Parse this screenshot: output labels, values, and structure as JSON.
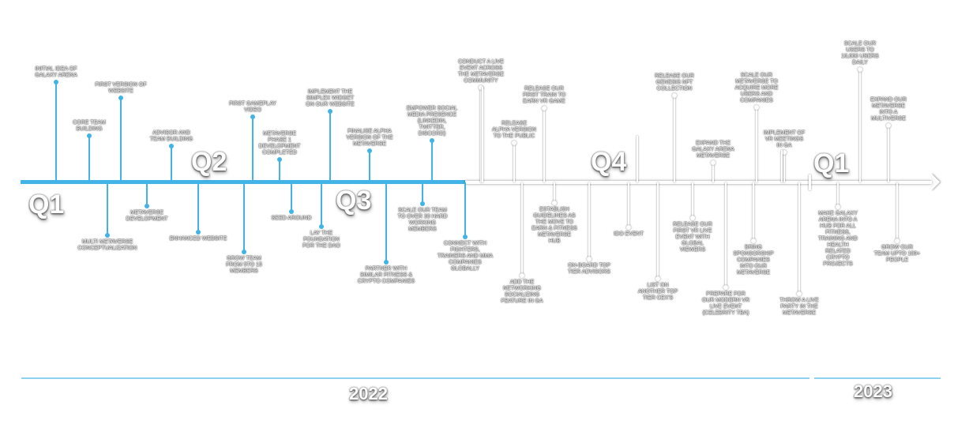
{
  "quarters": [
    {
      "label": "Q1"
    },
    {
      "label": "Q2"
    },
    {
      "label": "Q3"
    },
    {
      "label": "Q4"
    },
    {
      "label": "Q1"
    }
  ],
  "years": [
    {
      "label": "2022"
    },
    {
      "label": "2023"
    }
  ],
  "milestones": [
    {
      "text": "INITIAL IDEA OF\nGALAXY ARENA",
      "status": "done"
    },
    {
      "text": "MULTI METAVERSE\nCONCEPTUALIZATION",
      "status": "done"
    },
    {
      "text": "CORE TEAM\nBUILDING",
      "status": "done"
    },
    {
      "text": "FIRST VERSION OF\nWEBSITE",
      "status": "done"
    },
    {
      "text": "METAVERSE\nDEVELOPMENT",
      "status": "done"
    },
    {
      "text": "ADVISOR AND\nTEAM BUILDING",
      "status": "done"
    },
    {
      "text": "ENHANCED WEBSITE",
      "status": "done"
    },
    {
      "text": "GROW TEAM\nFROM 5TO 15\nMEMBERS",
      "status": "done"
    },
    {
      "text": "FIRST GAMEPLAY\nVIDEO",
      "status": "done"
    },
    {
      "text": "METAVERSE\nPHASE 1\nDEVELOPMENT\nCOMPLETED",
      "status": "done"
    },
    {
      "text": "SEED AROUND",
      "status": "done"
    },
    {
      "text": "LAY THE\nFOUNDATION\nFOR THE DAO",
      "status": "done"
    },
    {
      "text": "IMPLEMENT THE\nSIMPLEX WIDGET\nON OUR WEBSITE",
      "status": "done"
    },
    {
      "text": "FINALISE ALPHA\nVERSION OF THE\nMETAVERSE",
      "status": "done"
    },
    {
      "text": "PARTNER WITH\nSIMILAR FITNESS &\nCRYPTO COMPANIES",
      "status": "done"
    },
    {
      "text": "SCALE OUR TEAM\nTO OVER 30 HARD\nWORKING\nMEMBERS",
      "status": "done"
    },
    {
      "text": "EMPOWER SOCIAL\nMEDIA PRESENCE\n(LINKEDIN,\nTWITTER,\nDISCORD)",
      "status": "done"
    },
    {
      "text": "CONNECT WITH\nFIGHTERS,\nTRAINERS AND MMA\nCOMPANIES\nGLOBALLY",
      "status": "done"
    },
    {
      "text": "CONDUCT A LIVE\nEVENT ACROSS\nTHE METAVERSE\nCOMMUNITY",
      "status": "todo"
    },
    {
      "text": "RELEASE\nALPHA VERSION\nTO THE PUBLIC",
      "status": "todo"
    },
    {
      "text": "ADD THE\nNETWORKING\nSOCIALIZING\nFEATURE IN GA",
      "status": "todo"
    },
    {
      "text": "RELEASE OUR\nFIRST TRAIN TO\nEARN VR GAME",
      "status": "todo"
    },
    {
      "text": "ESTABLISH\nGUIDELINES AS\nTHE MOVE TO\nEARN & FITNESS\nMETAVERSE\nHUB",
      "status": "todo"
    },
    {
      "text": "ON-BOARD TOP\nTIER ADVISORS",
      "status": "todo"
    },
    {
      "text": "IDO EVENT",
      "status": "todo"
    },
    {
      "text": "LIST ON\nANOTHER TOP\nTIER CEX'S",
      "status": "todo"
    },
    {
      "text": "RELEASE OUR\nGENESIS NFT\nCOLLECTION",
      "status": "todo"
    },
    {
      "text": "RELEASE OUR\nFIRST VR LIVE\nEVENT WITH\nGLOBAL\nVIEWERS",
      "status": "todo"
    },
    {
      "text": "EXPAND THE\nGALAXY ARENA\nMETAVERSE",
      "status": "todo"
    },
    {
      "text": "PREPARE FOR\nOUR MODERN VR\nLIVE EVENT\n(CELEBRITY TBA)",
      "status": "todo"
    },
    {
      "text": "BRING\nSPONSORSHIP\nCOMPANIES\nINTO OUR\nMETAVERSE",
      "status": "todo"
    },
    {
      "text": "SCALE OUR\nMETAVERSE TO\nACQUIRE MORE\nUSERS AND\nCOMPANIES",
      "status": "todo"
    },
    {
      "text": "IMPLEMENT OF\nVR MEETINGS\nIN GA",
      "status": "todo"
    },
    {
      "text": "THROW A LIVE\nPARTY IN THE\nMETAVERSE",
      "status": "todo"
    },
    {
      "text": "MAKE GALAXY\nARENA INTO A\nHUB FOR ALL\nFITNESS,\nTRAINING AND\nHEALTH\nRELATED\nCRYPTO\nPROJECTS",
      "status": "todo"
    },
    {
      "text": "SCALE OUR\nUSERS TO\n10,000 USERS\nDAILY",
      "status": "todo"
    },
    {
      "text": "EXPAND OUR\nMETAVERSE\nINTO A\nMULTIVERSE",
      "status": "todo"
    },
    {
      "text": "GROW OUR\nTEAM UPTO 100+\nPEOPLE",
      "status": "todo"
    }
  ]
}
